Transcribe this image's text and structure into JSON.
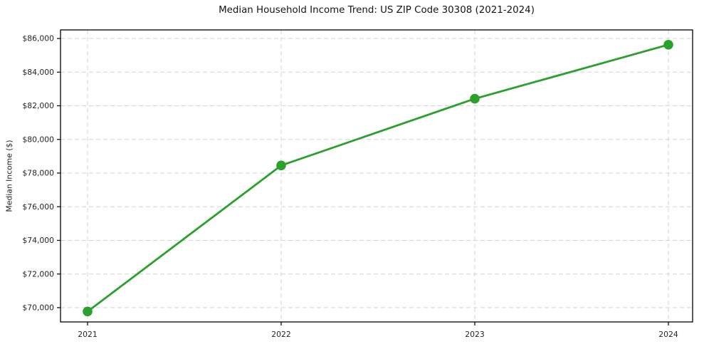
{
  "chart_data": {
    "type": "line",
    "title": "Median Household Income Trend: US ZIP Code 30308 (2021-2024)",
    "xlabel": "",
    "ylabel": "Median Income ($)",
    "categories": [
      "2021",
      "2022",
      "2023",
      "2024"
    ],
    "series": [
      {
        "name": "Median Household Income",
        "color": "#2ca02c",
        "values": [
          69770,
          78450,
          82420,
          85630
        ]
      }
    ],
    "y_tick_values": [
      70000,
      72000,
      74000,
      76000,
      78000,
      80000,
      82000,
      84000,
      86000
    ],
    "y_tick_labels": [
      "$70,000",
      "$72,000",
      "$74,000",
      "$76,000",
      "$78,000",
      "$80,000",
      "$82,000",
      "$84,000",
      "$86,000"
    ],
    "ylim": [
      69150,
      86510
    ],
    "grid": "dashed, both axes",
    "legend": false,
    "marker": "circle"
  },
  "colors": {
    "line": "#2ca02c",
    "marker": "#2ca02c",
    "grid": "#d4d4d4",
    "axis_frame": "#000000",
    "tick_text": "#262626",
    "title_text": "#141414",
    "background": "#ffffff"
  }
}
